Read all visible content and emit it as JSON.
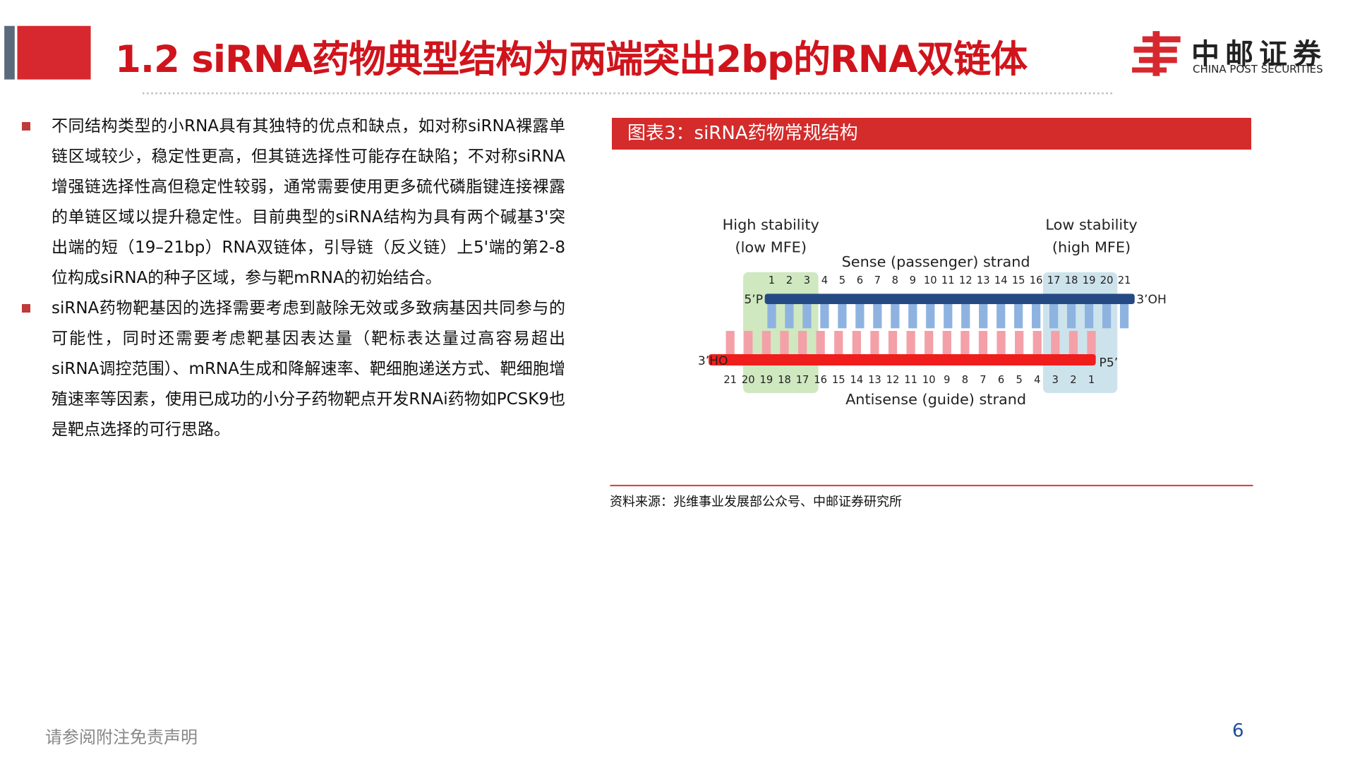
{
  "header": {
    "title": "1.2 siRNA药物典型结构为两端突出2bp的RNA双链体"
  },
  "logo": {
    "name": "中邮证券",
    "subtitle": "CHINA POST SECURITIES"
  },
  "body": {
    "bullets": [
      "不同结构类型的小RNA具有其独特的优点和缺点，如对称siRNA裸露单链区域较少，稳定性更高，但其链选择性可能存在缺陷；不对称siRNA增强链选择性高但稳定性较弱，通常需要使用更多硫代磷脂键连接裸露的单链区域以提升稳定性。目前典型的siRNA结构为具有两个碱基3'突出端的短（19–21bp）RNA双链体，引导链（反义链）上5'端的第2-8位构成siRNA的种子区域，参与靶mRNA的初始结合。",
      "siRNA药物靶基因的选择需要考虑到敲除无效或多致病基因共同参与的可能性，同时还需要考虑靶基因表达量（靶标表达量过高容易超出siRNA调控范围）、mRNA生成和降解速率、靶细胞递送方式、靶细胞增殖速率等因素，使用已成功的小分子药物靶点开发RNAi药物如PCSK9也是靶点选择的可行思路。"
    ]
  },
  "figure": {
    "caption": "图表3：siRNA药物常规结构",
    "diagram": {
      "high_stability": [
        "High stability",
        "(low MFE)"
      ],
      "low_stability": [
        "Low stability",
        "(high MFE)"
      ],
      "sense_label": "Sense (passenger) strand",
      "antisense_label": "Antisense (guide) strand",
      "sense_positions": [
        1,
        2,
        3,
        4,
        5,
        6,
        7,
        8,
        9,
        10,
        11,
        12,
        13,
        14,
        15,
        16,
        17,
        18,
        19,
        20,
        21
      ],
      "antisense_positions": [
        21,
        20,
        19,
        18,
        17,
        16,
        15,
        14,
        13,
        12,
        11,
        10,
        9,
        8,
        7,
        6,
        5,
        4,
        3,
        2,
        1
      ],
      "sense_5": "5’P",
      "sense_3": "3’OH",
      "antisense_3": "3’HO",
      "antisense_5": "P5’"
    },
    "source": "资料来源：兆维事业发展部公众号、中邮证券研究所"
  },
  "footer": {
    "disclaimer": "请参阅附注免责声明",
    "page": 6
  }
}
